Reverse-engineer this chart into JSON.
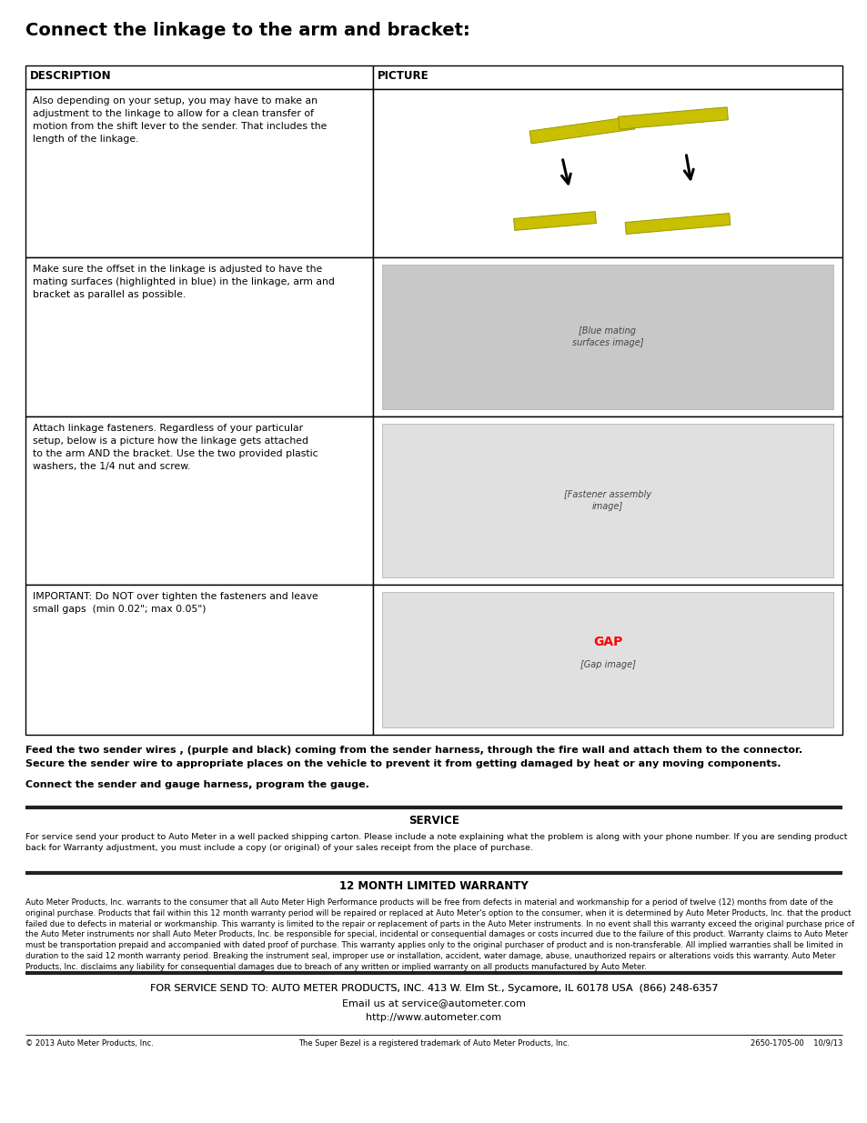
{
  "title": "Connect the linkage to the arm and bracket:",
  "bg_color": "#ffffff",
  "border_color": "#000000",
  "col1_header": "DESCRIPTION",
  "col2_header": "PICTURE",
  "rows": [
    {
      "description": "Also depending on your setup, you may have to make an\nadjustment to the linkage to allow for a clean transfer of\nmotion from the shift lever to the sender. That includes the\nlength of the linkage.",
      "pic_placeholder": "linkage_adjust"
    },
    {
      "description": "Make sure the offset in the linkage is adjusted to have the\nmating surfaces (highlighted in blue) in the linkage, arm and\nbracket as parallel as possible.",
      "pic_placeholder": "offset_adjust"
    },
    {
      "description": "Attach linkage fasteners. Regardless of your particular\nsetup, below is a picture how the linkage gets attached\nto the arm AND the bracket. Use the two provided plastic\nwashers, the 1/4 nut and screw.",
      "pic_placeholder": "fasteners"
    },
    {
      "description": "IMPORTANT: Do NOT over tighten the fasteners and leave\nsmall gaps  (min 0.02\"; max 0.05\")",
      "pic_placeholder": "gap"
    }
  ],
  "footer_text1": "Feed the two sender wires , (purple and black) coming from the sender harness, through the fire wall and attach them to the connector.\nSecure the sender wire to appropriate places on the vehicle to prevent it from getting damaged by heat or any moving components.",
  "footer_text2": "Connect the sender and gauge harness, program the gauge.",
  "service_title": "SERVICE",
  "service_text": "For service send your product to Auto Meter in a well packed shipping carton. Please include a note explaining what the problem is along with your phone number. If you are sending product\nback for Warranty adjustment, you must include a copy (or original) of your sales receipt from the place of purchase.",
  "warranty_title": "12 MONTH LIMITED WARRANTY",
  "warranty_text": "Auto Meter Products, Inc. warrants to the consumer that all Auto Meter High Performance products will be free from defects in material and workmanship for a period of twelve (12) months from date of the\noriginal purchase. Products that fail within this 12 month warranty period will be repaired or replaced at Auto Meter's option to the consumer, when it is determined by Auto Meter Products, Inc. that the product\nfailed due to defects in material or workmanship. This warranty is limited to the repair or replacement of parts in the Auto Meter instruments. In no event shall this warranty exceed the original purchase price of\nthe Auto Meter instruments nor shall Auto Meter Products, Inc. be responsible for special, incidental or consequential damages or costs incurred due to the failure of this product. Warranty claims to Auto Meter\nmust be transportation prepaid and accompanied with dated proof of purchase. This warranty applies only to the original purchaser of product and is non-transferable. All implied warranties shall be limited in\nduration to the said 12 month warranty period. Breaking the instrument seal, improper use or installation, accident, water damage, abuse, unauthorized repairs or alterations voids this warranty. Auto Meter\nProducts, Inc. disclaims any liability for consequential damages due to breach of any written or implied warranty on all products manufactured by Auto Meter.",
  "contact_line1_normal": "FOR SERVICE SEND TO: ",
  "contact_line1_bold": "AUTO METER PRODUCTS, INC.",
  "contact_line1_rest": " 413 W. Elm St., Sycamore, IL 60178 USA  (866) 248-6357",
  "contact_line2": "Email us at service@autometer.com",
  "contact_line3": "http://www.autometer.com",
  "footer_left": "© 2013 Auto Meter Products, Inc.",
  "footer_center": "The Super Bezel is a registered trademark of Auto Meter Products, Inc.",
  "footer_right": "2650-1705-00    10/9/13"
}
